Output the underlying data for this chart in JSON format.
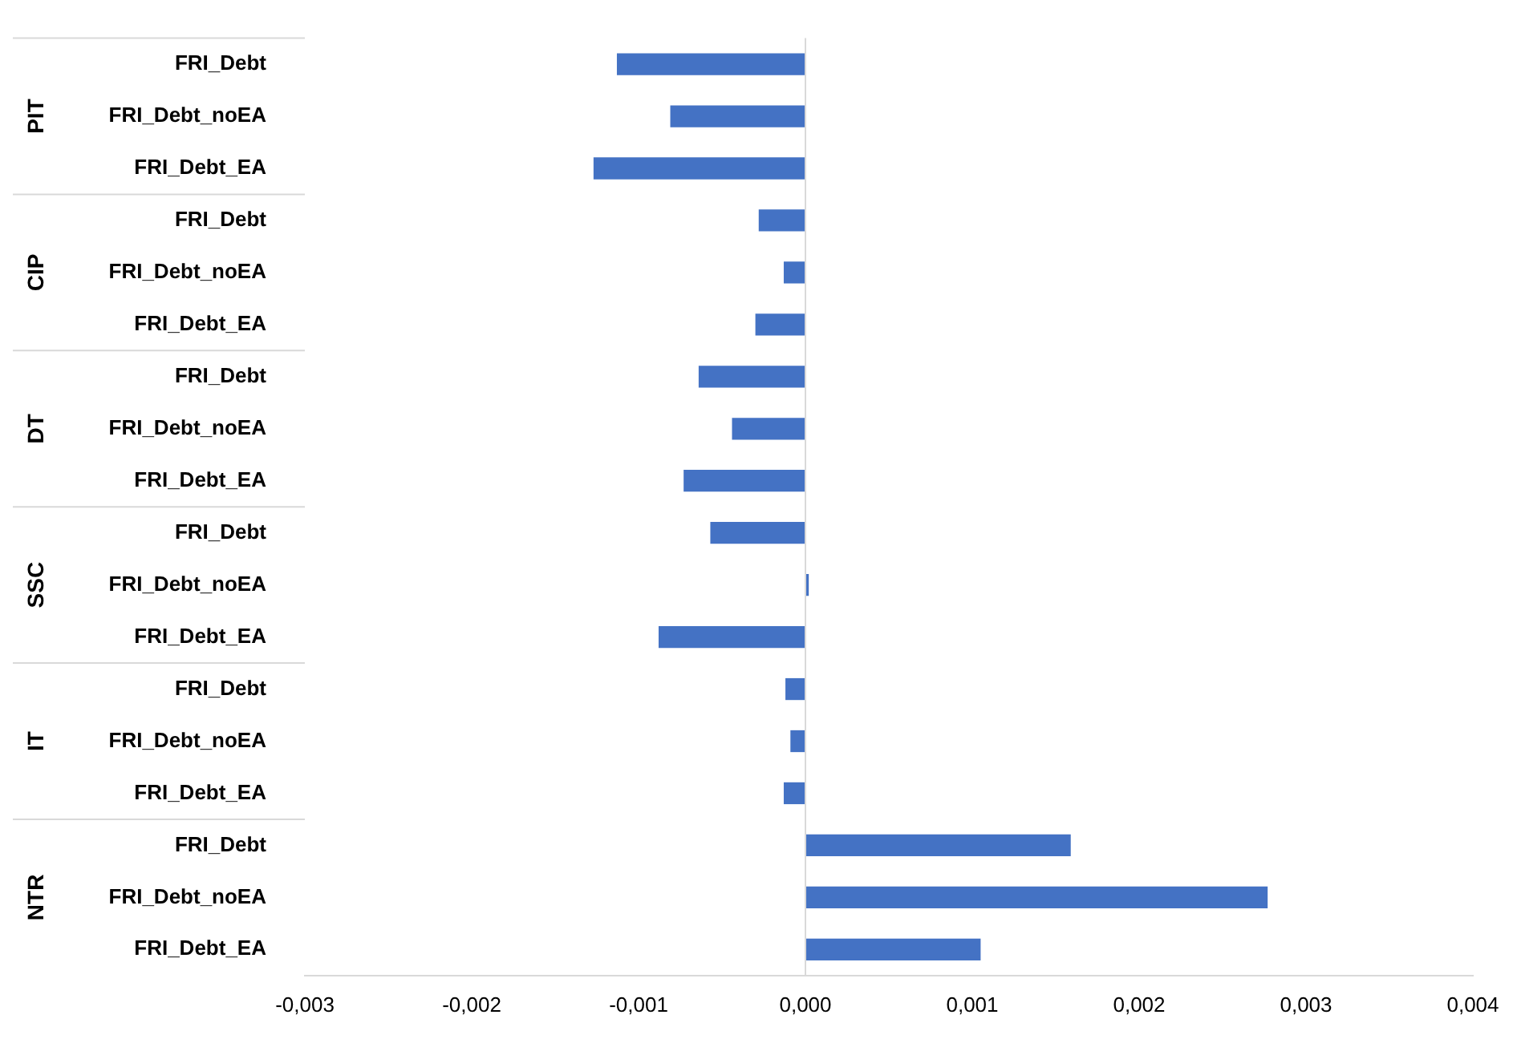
{
  "chart_data": {
    "type": "bar",
    "orientation": "horizontal",
    "categories": [
      "FRI_Debt",
      "FRI_Debt_noEA",
      "FRI_Debt_EA",
      "FRI_Debt",
      "FRI_Debt_noEA",
      "FRI_Debt_EA",
      "FRI_Debt",
      "FRI_Debt_noEA",
      "FRI_Debt_EA",
      "FRI_Debt",
      "FRI_Debt_noEA",
      "FRI_Debt_EA",
      "FRI_Debt",
      "FRI_Debt_noEA",
      "FRI_Debt_EA",
      "FRI_Debt",
      "FRI_Debt_noEA",
      "FRI_Debt_EA"
    ],
    "values": [
      -0.00113,
      -0.00081,
      -0.00127,
      -0.00028,
      -0.00013,
      -0.0003,
      -0.00064,
      -0.00044,
      -0.00073,
      -0.00057,
      2e-05,
      -0.00088,
      -0.00012,
      -9e-05,
      -0.00013,
      0.00159,
      0.00277,
      0.00105
    ],
    "color": "#4472c4",
    "annotations": [
      "PIT",
      "CIP",
      "DT",
      "SSC",
      "IT",
      "NTR"
    ],
    "xlim": [
      -0.003,
      0.004
    ],
    "xticks": [
      {
        "value": -0.003,
        "label": "-0,003"
      },
      {
        "value": -0.002,
        "label": "-0,002"
      },
      {
        "value": -0.001,
        "label": "-0,001"
      },
      {
        "value": 0,
        "label": "0,000"
      },
      {
        "value": 0.001,
        "label": "0,001"
      },
      {
        "value": 0.002,
        "label": "0,002"
      },
      {
        "value": 0.003,
        "label": "0,003"
      },
      {
        "value": 0.004,
        "label": "0,004"
      }
    ],
    "ref_lines": [
      {
        "axis": "x",
        "value": 0,
        "color": "#d9d9d9"
      }
    ],
    "grid": false,
    "legend": false
  }
}
